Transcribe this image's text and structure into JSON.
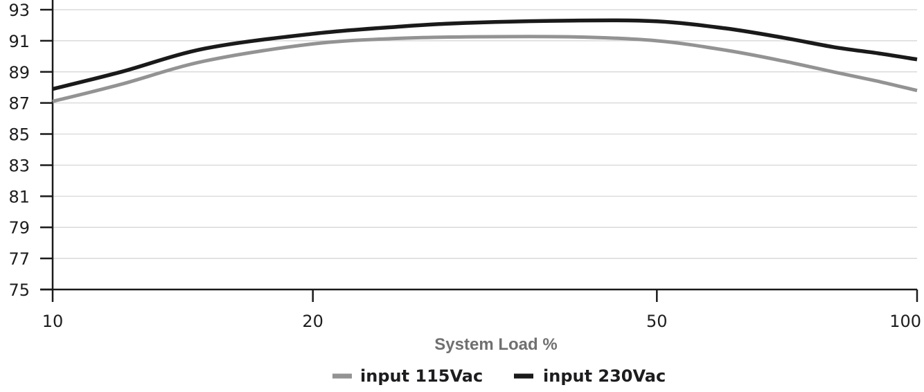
{
  "chart_data": {
    "type": "line",
    "title": "",
    "xlabel": "System Load %",
    "ylabel": "",
    "x_scale": "log",
    "x_ticks": [
      10,
      20,
      50,
      100
    ],
    "x_tick_labels": [
      "10",
      "20",
      "50",
      "100"
    ],
    "ylim": [
      75,
      93
    ],
    "y_ticks": [
      75,
      77,
      79,
      81,
      83,
      85,
      87,
      89,
      91,
      93
    ],
    "y_tick_labels": [
      "75",
      "77",
      "79",
      "81",
      "83",
      "85",
      "87",
      "89",
      "91",
      "93"
    ],
    "grid": true,
    "legend_position": "bottom-center",
    "series": [
      {
        "name": "input 115Vac",
        "color": "#939393",
        "x": [
          10,
          12,
          15,
          20,
          25,
          30,
          40,
          50,
          60,
          70,
          80,
          90,
          100
        ],
        "y": [
          87.1,
          88.2,
          89.7,
          90.8,
          91.15,
          91.25,
          91.25,
          91.0,
          90.4,
          89.7,
          89.0,
          88.4,
          87.8
        ]
      },
      {
        "name": "input 230Vac",
        "color": "#1a1a1a",
        "x": [
          10,
          12,
          15,
          20,
          25,
          30,
          40,
          50,
          60,
          70,
          80,
          90,
          100
        ],
        "y": [
          87.9,
          89.0,
          90.5,
          91.45,
          91.9,
          92.15,
          92.3,
          92.25,
          91.8,
          91.2,
          90.6,
          90.2,
          89.8
        ]
      }
    ]
  }
}
